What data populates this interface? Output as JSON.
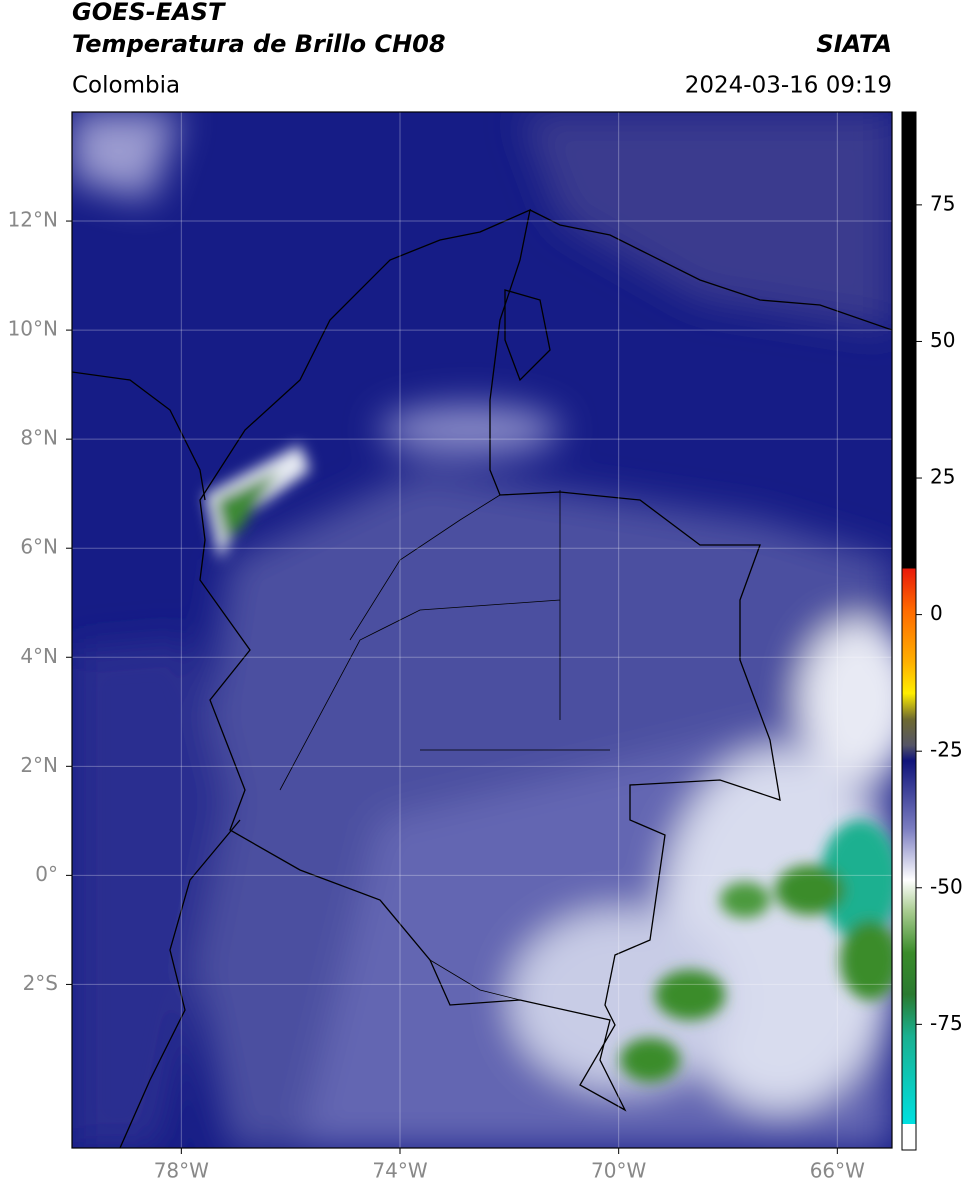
{
  "header": {
    "satellite": "GOES-EAST",
    "product": "Temperatura de Brillo CH08",
    "region": "Colombia",
    "source": "SIATA",
    "datetime": "2024-03-16 09:19"
  },
  "map": {
    "xlim": [
      -80,
      -65
    ],
    "ylim": [
      -5,
      14
    ],
    "xticks": [
      {
        "value": -78,
        "label": "78°W"
      },
      {
        "value": -74,
        "label": "74°W"
      },
      {
        "value": -70,
        "label": "70°W"
      },
      {
        "value": -66,
        "label": "66°W"
      }
    ],
    "yticks": [
      {
        "value": 12,
        "label": "12°N"
      },
      {
        "value": 10,
        "label": "10°N"
      },
      {
        "value": 8,
        "label": "8°N"
      },
      {
        "value": 6,
        "label": "6°N"
      },
      {
        "value": 4,
        "label": "4°N"
      },
      {
        "value": 2,
        "label": "2°N"
      },
      {
        "value": 0,
        "label": "0°"
      },
      {
        "value": -2,
        "label": "2°S"
      }
    ],
    "grid": true
  },
  "colorbar": {
    "lim": [
      -98,
      92
    ],
    "ticks": [
      75,
      50,
      25,
      0,
      -25,
      -50,
      -75
    ]
  }
}
